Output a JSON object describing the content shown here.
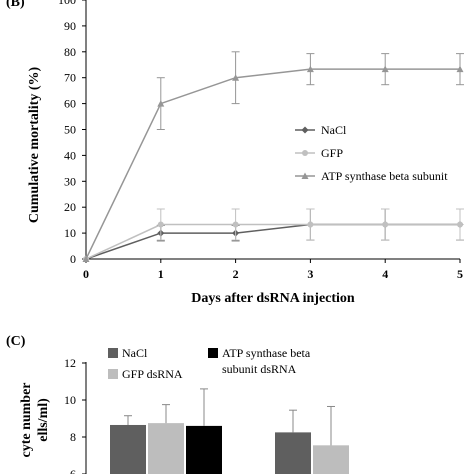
{
  "chart_data": [
    {
      "panel": "(B)",
      "type": "line",
      "xlabel": "Days after dsRNA injection",
      "ylabel": "Cumulative mortality (%)",
      "x": [
        0,
        1,
        2,
        3,
        4,
        5
      ],
      "xlim": [
        0,
        5
      ],
      "ylim": [
        0,
        100
      ],
      "yticks": [
        0,
        10,
        20,
        30,
        40,
        50,
        60,
        70,
        80,
        90,
        100
      ],
      "legend_position": "center-right",
      "series": [
        {
          "name": "NaCl",
          "color": "#5f5f5f",
          "marker": "diamond",
          "values": [
            0,
            10,
            10,
            13.3,
            13.3,
            13.3
          ],
          "errors": [
            0,
            3,
            3,
            6,
            6,
            6
          ]
        },
        {
          "name": "GFP",
          "color": "#c0c0c0",
          "marker": "circle",
          "values": [
            0,
            13.3,
            13.3,
            13.3,
            13.3,
            13.3
          ],
          "errors": [
            0,
            6,
            6,
            6,
            6,
            6
          ]
        },
        {
          "name": "ATP synthase beta subunit",
          "color": "#969696",
          "marker": "triangle",
          "values": [
            0,
            60,
            70,
            73.3,
            73.3,
            73.3
          ],
          "errors": [
            0,
            10,
            10,
            6,
            6,
            6
          ]
        }
      ]
    },
    {
      "panel": "(C)",
      "type": "bar",
      "ylabel_visible": "cyte number",
      "ylabel_visible_line2": "ells/ml)",
      "yticks": [
        6,
        8,
        10,
        12
      ],
      "ylim": [
        6,
        12
      ],
      "legend_position": "top",
      "series": [
        {
          "name": "NaCl",
          "color": "#5f5f5f",
          "values": [
            8.65,
            8.25
          ],
          "errors": [
            0.5,
            1.2
          ]
        },
        {
          "name": "GFP dsRNA",
          "color": "#bdbdbd",
          "values": [
            8.75,
            7.55
          ],
          "errors": [
            1.0,
            2.1
          ]
        },
        {
          "name": "ATP synthase beta subunit dsRNA",
          "name_line1": "ATP synthase beta",
          "name_line2": "subunit dsRNA",
          "color": "#000000",
          "values": [
            8.6,
            null
          ],
          "errors": [
            2.0,
            null
          ]
        }
      ]
    }
  ]
}
